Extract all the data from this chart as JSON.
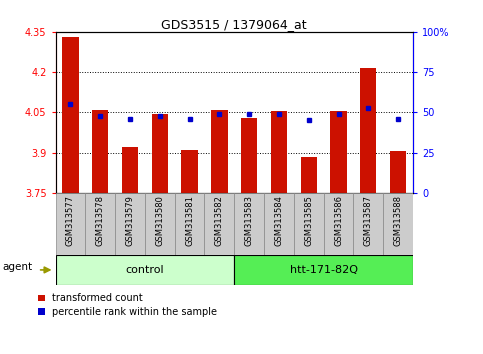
{
  "title": "GDS3515 / 1379064_at",
  "categories": [
    "GSM313577",
    "GSM313578",
    "GSM313579",
    "GSM313580",
    "GSM313581",
    "GSM313582",
    "GSM313583",
    "GSM313584",
    "GSM313585",
    "GSM313586",
    "GSM313587",
    "GSM313588"
  ],
  "red_values": [
    4.33,
    4.06,
    3.92,
    4.045,
    3.91,
    4.06,
    4.03,
    4.055,
    3.885,
    4.055,
    4.215,
    3.905
  ],
  "blue_values_pct": [
    55,
    48,
    46,
    48,
    46,
    49,
    49,
    49,
    45,
    49,
    53,
    46
  ],
  "ylim_left": [
    3.75,
    4.35
  ],
  "ylim_right": [
    0,
    100
  ],
  "yticks_left": [
    3.75,
    3.9,
    4.05,
    4.2,
    4.35
  ],
  "yticks_right": [
    0,
    25,
    50,
    75,
    100
  ],
  "ytick_labels_left": [
    "3.75",
    "3.9",
    "4.05",
    "4.2",
    "4.35"
  ],
  "ytick_labels_right": [
    "0",
    "25",
    "50",
    "75",
    "100%"
  ],
  "hlines": [
    3.9,
    4.05,
    4.2
  ],
  "bar_color": "#cc1100",
  "dot_color": "#0000cc",
  "background_plot": "#ffffff",
  "xtick_bg": "#cccccc",
  "group1_label": "control",
  "group1_indices": [
    0,
    1,
    2,
    3,
    4,
    5
  ],
  "group2_label": "htt-171-82Q",
  "group2_indices": [
    6,
    7,
    8,
    9,
    10,
    11
  ],
  "group1_color": "#ccffcc",
  "group2_color": "#55ee55",
  "agent_label": "agent",
  "legend_red": "transformed count",
  "legend_blue": "percentile rank within the sample",
  "base_value": 3.75,
  "bar_width": 0.55
}
